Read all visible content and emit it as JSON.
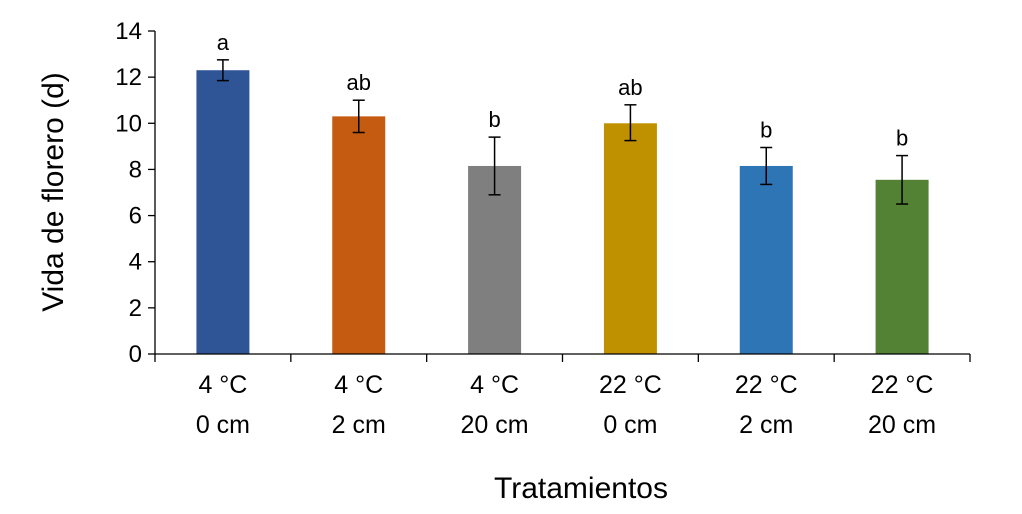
{
  "chart_data": {
    "type": "bar",
    "xlabel": "Tratamientos",
    "ylabel": "Vida de florero (d)",
    "ylim": [
      0,
      14
    ],
    "yticks": [
      0,
      2,
      4,
      6,
      8,
      10,
      12,
      14
    ],
    "grid": false,
    "categories": [
      [
        "4 °C",
        "0 cm"
      ],
      [
        "4 °C",
        "2 cm"
      ],
      [
        "4 °C",
        "20 cm"
      ],
      [
        "22 °C",
        "0 cm"
      ],
      [
        "22 °C",
        "2 cm"
      ],
      [
        "22 °C",
        "20 cm"
      ]
    ],
    "values": [
      12.3,
      10.3,
      8.15,
      10.0,
      8.15,
      7.55
    ],
    "error_low": [
      11.85,
      9.6,
      6.9,
      9.25,
      7.35,
      6.5
    ],
    "error_high": [
      12.75,
      11.0,
      9.4,
      10.8,
      8.95,
      8.6
    ],
    "significance": [
      "a",
      "ab",
      "b",
      "ab",
      "b",
      "b"
    ],
    "colors": [
      "#2F5597",
      "#C55A11",
      "#7F7F7F",
      "#BF9000",
      "#2E75B6",
      "#548235"
    ]
  }
}
